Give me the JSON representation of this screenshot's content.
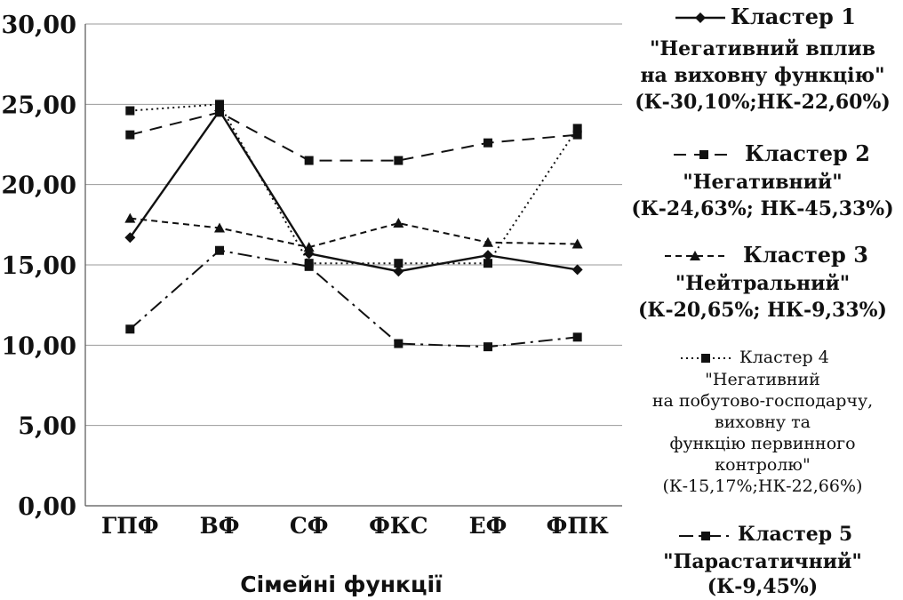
{
  "chart_data": {
    "type": "line",
    "xlabel": "Сімейні функції",
    "ylabel": "",
    "ylim": [
      0,
      30
    ],
    "yticks": [
      "0,00",
      "5,00",
      "10,00",
      "15,00",
      "20,00",
      "25,00",
      "30,00"
    ],
    "ytick_values": [
      0,
      5,
      10,
      15,
      20,
      25,
      30
    ],
    "categories": [
      "ГПФ",
      "ВФ",
      "СФ",
      "ФКС",
      "ЕФ",
      "ФПК"
    ],
    "grid": "horizontal",
    "legend_position": "right",
    "series": [
      {
        "name": "Кластер 1",
        "values": [
          16.7,
          24.6,
          15.7,
          14.6,
          15.6,
          14.7
        ],
        "marker": "diamond",
        "dash": "solid",
        "label_lines": [
          "\"Негативний вплив",
          "на виховну функцію\"",
          "(К-30,10%;НК-22,60%)"
        ]
      },
      {
        "name": "Кластер 2",
        "values": [
          23.1,
          24.5,
          21.5,
          21.5,
          22.6,
          23.1
        ],
        "marker": "square",
        "dash": "dashed",
        "label_lines": [
          "\"Негативний\"",
          "(К-24,63%; НК-45,33%)"
        ]
      },
      {
        "name": "Кластер 3",
        "values": [
          17.9,
          17.3,
          16.1,
          17.6,
          16.4,
          16.3
        ],
        "marker": "triangle",
        "dash": "short-dashed",
        "label_lines": [
          "\"Нейтральний\"",
          "(К-20,65%; НК-9,33%)"
        ]
      },
      {
        "name": "Кластер 4",
        "values": [
          24.6,
          25.0,
          15.1,
          15.1,
          15.1,
          23.5
        ],
        "marker": "square",
        "dash": "dotted",
        "label_lines": [
          "\"Негативний",
          "на побутово-господарчу,",
          "виховну та",
          "функцію первинного",
          "контролю\"",
          "(К-15,17%;НК-22,66%)"
        ]
      },
      {
        "name": "Кластер 5",
        "values": [
          11.0,
          15.9,
          14.9,
          10.1,
          9.9,
          10.5
        ],
        "marker": "square",
        "dash": "dash-dot",
        "label_lines": [
          "\"Парастатичний\"",
          "(К-9,45%)"
        ]
      }
    ]
  }
}
